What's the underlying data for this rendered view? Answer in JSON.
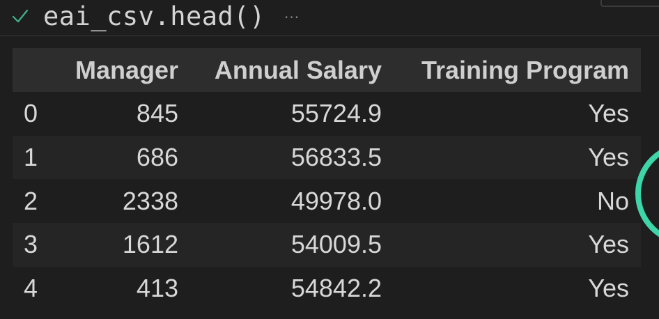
{
  "cell": {
    "status_icon": "check-icon",
    "code": "eai_csv.head()",
    "more_label": "···"
  },
  "table": {
    "columns": [
      "",
      "Manager",
      "Annual Salary",
      "Training Program"
    ],
    "rows": [
      {
        "index": "0",
        "manager": "845",
        "salary": "55724.9",
        "training": "Yes"
      },
      {
        "index": "1",
        "manager": "686",
        "salary": "56833.5",
        "training": "Yes"
      },
      {
        "index": "2",
        "manager": "2338",
        "salary": "49978.0",
        "training": "No"
      },
      {
        "index": "3",
        "manager": "1612",
        "salary": "54009.5",
        "training": "Yes"
      },
      {
        "index": "4",
        "manager": "413",
        "salary": "54842.2",
        "training": "Yes"
      }
    ]
  },
  "colors": {
    "background": "#1e1e1e",
    "check": "#3fb58a",
    "ring": "#3ed6a8"
  }
}
